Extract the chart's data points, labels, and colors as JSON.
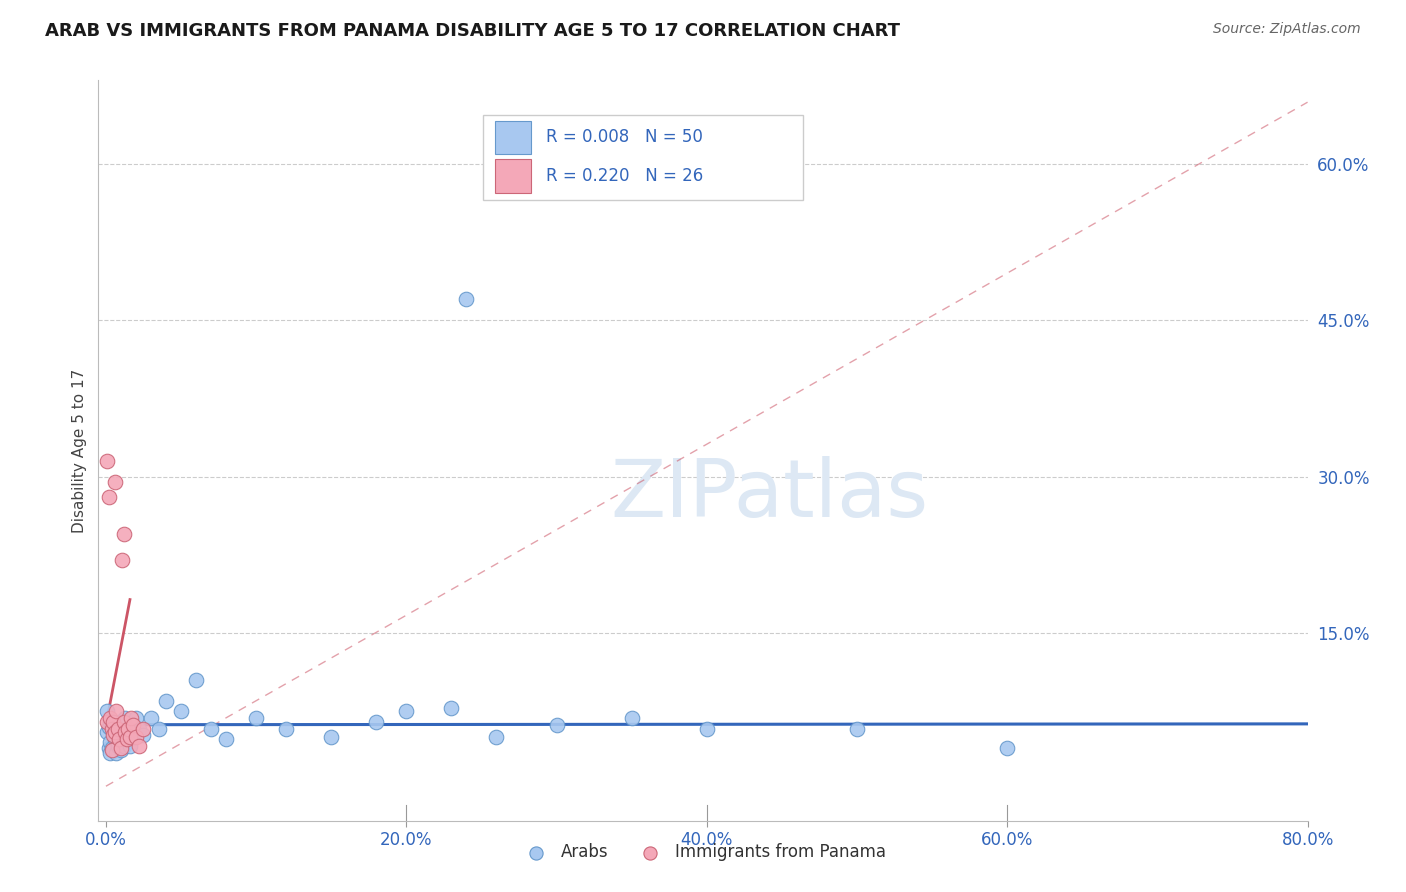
{
  "title": "ARAB VS IMMIGRANTS FROM PANAMA DISABILITY AGE 5 TO 17 CORRELATION CHART",
  "source": "Source: ZipAtlas.com",
  "ylabel": "Disability Age 5 to 17",
  "xlim": [
    -0.005,
    0.8
  ],
  "ylim": [
    -0.03,
    0.68
  ],
  "xticks": [
    0.0,
    0.2,
    0.4,
    0.6,
    0.8
  ],
  "xtick_labels": [
    "0.0%",
    "20.0%",
    "40.0%",
    "60.0%",
    "80.0%"
  ],
  "ytick_labels_right": [
    "60.0%",
    "45.0%",
    "30.0%",
    "15.0%"
  ],
  "ytick_vals_right": [
    0.6,
    0.45,
    0.3,
    0.15
  ],
  "legend_r1": "R = 0.008",
  "legend_n1": "N = 50",
  "legend_r2": "R = 0.220",
  "legend_n2": "N = 26",
  "legend_label1": "Arabs",
  "legend_label2": "Immigrants from Panama",
  "color_arab": "#a8c8f0",
  "color_panama": "#f4a8b8",
  "color_arab_edge": "#6699cc",
  "color_panama_edge": "#cc6677",
  "color_arab_line": "#3366bb",
  "color_panama_line": "#cc5566",
  "color_text_blue": "#3366bb",
  "watermark_color": "#dde8f4",
  "arab_x": [
    0.001,
    0.001,
    0.002,
    0.002,
    0.003,
    0.003,
    0.003,
    0.004,
    0.004,
    0.005,
    0.005,
    0.006,
    0.006,
    0.007,
    0.007,
    0.008,
    0.009,
    0.009,
    0.01,
    0.01,
    0.011,
    0.012,
    0.013,
    0.014,
    0.015,
    0.016,
    0.018,
    0.02,
    0.022,
    0.025,
    0.03,
    0.035,
    0.04,
    0.05,
    0.06,
    0.07,
    0.08,
    0.1,
    0.12,
    0.15,
    0.18,
    0.2,
    0.23,
    0.26,
    0.3,
    0.35,
    0.4,
    0.5,
    0.6,
    0.24
  ],
  "arab_y": [
    0.075,
    0.055,
    0.06,
    0.04,
    0.065,
    0.045,
    0.035,
    0.06,
    0.04,
    0.055,
    0.038,
    0.048,
    0.062,
    0.035,
    0.05,
    0.042,
    0.048,
    0.065,
    0.055,
    0.038,
    0.052,
    0.042,
    0.068,
    0.05,
    0.058,
    0.042,
    0.05,
    0.068,
    0.058,
    0.052,
    0.068,
    0.058,
    0.085,
    0.075,
    0.105,
    0.058,
    0.048,
    0.068,
    0.058,
    0.05,
    0.065,
    0.075,
    0.078,
    0.05,
    0.062,
    0.068,
    0.058,
    0.058,
    0.04,
    0.47
  ],
  "panama_x": [
    0.001,
    0.001,
    0.002,
    0.003,
    0.004,
    0.004,
    0.005,
    0.005,
    0.006,
    0.006,
    0.007,
    0.008,
    0.009,
    0.01,
    0.011,
    0.012,
    0.012,
    0.013,
    0.014,
    0.015,
    0.016,
    0.017,
    0.018,
    0.02,
    0.022,
    0.025
  ],
  "panama_y": [
    0.315,
    0.065,
    0.28,
    0.068,
    0.058,
    0.038,
    0.052,
    0.065,
    0.295,
    0.055,
    0.075,
    0.058,
    0.048,
    0.04,
    0.22,
    0.245,
    0.065,
    0.055,
    0.048,
    0.058,
    0.05,
    0.068,
    0.062,
    0.05,
    0.042,
    0.058
  ],
  "diag_line_slope": 0.82,
  "diag_line_intercept": 0.003,
  "blue_line_slope": 0.001,
  "blue_line_intercept": 0.062
}
